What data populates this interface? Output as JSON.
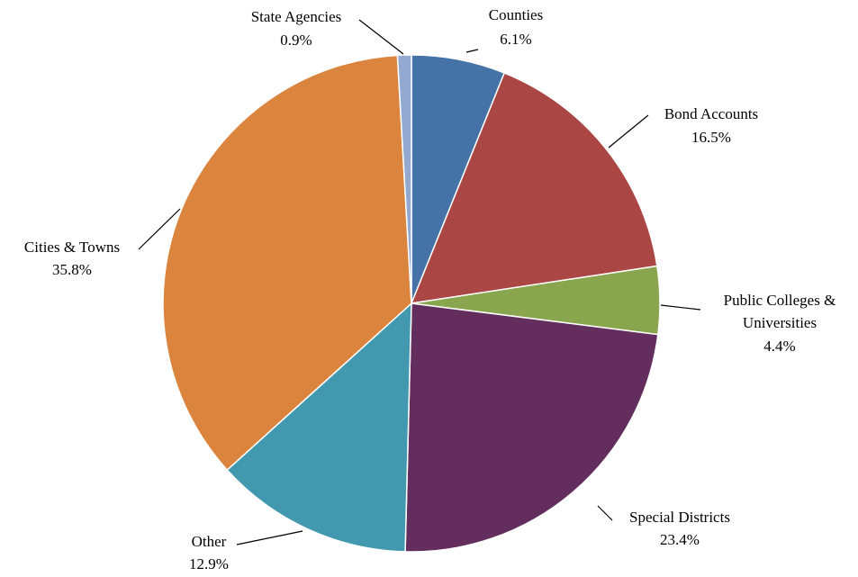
{
  "chart_data": {
    "type": "pie",
    "title": "",
    "slices": [
      {
        "name": "Counties",
        "value": 6.1,
        "label": "6.1%",
        "color": "#4572a7"
      },
      {
        "name": "Bond Accounts",
        "value": 16.5,
        "label": "16.5%",
        "color": "#aa4643"
      },
      {
        "name": "Public Colleges & Universities",
        "value": 4.4,
        "label": "4.4%",
        "color": "#89a54e"
      },
      {
        "name": "Special Districts",
        "value": 23.4,
        "label": "23.4%",
        "color": "#632e5d"
      },
      {
        "name": "Other",
        "value": 12.9,
        "label": "12.9%",
        "color": "#4198af"
      },
      {
        "name": "Cities & Towns",
        "value": 35.8,
        "label": "35.8%",
        "color": "#db843d"
      },
      {
        "name": "State Agencies",
        "value": 0.9,
        "label": "0.9%",
        "color": "#93a9cf"
      }
    ],
    "start_angle": "12 o'clock",
    "direction": "clockwise",
    "legend": "none"
  }
}
